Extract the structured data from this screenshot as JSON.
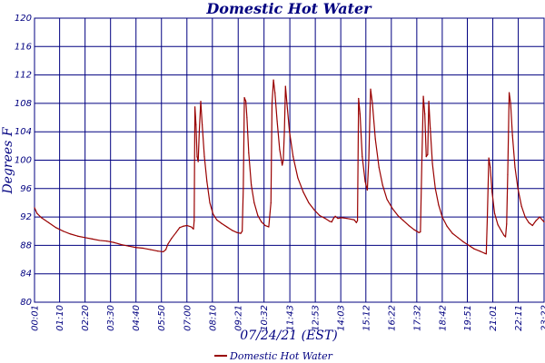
{
  "chart_data": {
    "type": "line",
    "title": "Domestic Hot Water",
    "xlabel": "07/24/21 (EST)",
    "ylabel": "Degrees F",
    "ylim": [
      80,
      120
    ],
    "yticks": [
      80,
      84,
      88,
      92,
      96,
      100,
      104,
      108,
      112,
      116,
      120
    ],
    "grid": true,
    "legend_position": "bottom-center",
    "colors": {
      "series": "#990000",
      "grid": "#000080",
      "text": "#000080",
      "background": "#ffffff"
    },
    "x_tick_labels": [
      "00:01",
      "01:10",
      "02:20",
      "03:30",
      "04:40",
      "05:50",
      "07:00",
      "08:10",
      "09:21",
      "10:32",
      "11:43",
      "12:53",
      "14:03",
      "15:12",
      "16:22",
      "17:32",
      "18:42",
      "19:51",
      "21:01",
      "22:11",
      "23:22"
    ],
    "x_tick_minutes": [
      1,
      70,
      140,
      210,
      280,
      350,
      420,
      490,
      561,
      632,
      703,
      773,
      843,
      912,
      982,
      1052,
      1122,
      1191,
      1261,
      1331,
      1402
    ],
    "xlim_minutes": [
      1,
      1402
    ],
    "series": [
      {
        "name": "Domestic Hot Water",
        "points": [
          [
            1,
            93.3
          ],
          [
            8,
            92.5
          ],
          [
            20,
            91.9
          ],
          [
            40,
            91.2
          ],
          [
            60,
            90.5
          ],
          [
            80,
            90.0
          ],
          [
            100,
            89.6
          ],
          [
            120,
            89.3
          ],
          [
            140,
            89.1
          ],
          [
            160,
            88.9
          ],
          [
            180,
            88.7
          ],
          [
            200,
            88.6
          ],
          [
            220,
            88.4
          ],
          [
            240,
            88.1
          ],
          [
            260,
            87.9
          ],
          [
            280,
            87.7
          ],
          [
            300,
            87.6
          ],
          [
            320,
            87.4
          ],
          [
            340,
            87.2
          ],
          [
            355,
            87.1
          ],
          [
            362,
            87.4
          ],
          [
            368,
            88.2
          ],
          [
            378,
            89.0
          ],
          [
            390,
            89.8
          ],
          [
            400,
            90.5
          ],
          [
            410,
            90.7
          ],
          [
            420,
            90.8
          ],
          [
            432,
            90.6
          ],
          [
            438,
            90.3
          ],
          [
            440,
            91.5
          ],
          [
            442,
            107.5
          ],
          [
            445,
            105.0
          ],
          [
            448,
            100.5
          ],
          [
            451,
            99.8
          ],
          [
            454,
            104.0
          ],
          [
            458,
            108.3
          ],
          [
            462,
            105.0
          ],
          [
            468,
            100.5
          ],
          [
            475,
            97.0
          ],
          [
            483,
            94.0
          ],
          [
            492,
            92.4
          ],
          [
            502,
            91.6
          ],
          [
            515,
            91.1
          ],
          [
            530,
            90.6
          ],
          [
            545,
            90.1
          ],
          [
            558,
            89.8
          ],
          [
            568,
            89.7
          ],
          [
            572,
            90.0
          ],
          [
            575,
            96.0
          ],
          [
            578,
            108.8
          ],
          [
            582,
            108.3
          ],
          [
            585,
            106.0
          ],
          [
            590,
            101.0
          ],
          [
            597,
            96.5
          ],
          [
            605,
            94.0
          ],
          [
            615,
            92.2
          ],
          [
            625,
            91.3
          ],
          [
            635,
            90.8
          ],
          [
            645,
            90.6
          ],
          [
            651,
            94.0
          ],
          [
            654,
            108.0
          ],
          [
            658,
            111.3
          ],
          [
            662,
            109.5
          ],
          [
            668,
            105.5
          ],
          [
            675,
            101.5
          ],
          [
            682,
            99.3
          ],
          [
            685,
            100.0
          ],
          [
            688,
            104.0
          ],
          [
            691,
            110.4
          ],
          [
            695,
            108.0
          ],
          [
            702,
            104.0
          ],
          [
            712,
            100.5
          ],
          [
            725,
            97.5
          ],
          [
            740,
            95.5
          ],
          [
            755,
            94.0
          ],
          [
            770,
            93.0
          ],
          [
            785,
            92.2
          ],
          [
            800,
            91.8
          ],
          [
            812,
            91.4
          ],
          [
            818,
            91.3
          ],
          [
            823,
            91.8
          ],
          [
            828,
            92.1
          ],
          [
            835,
            91.8
          ],
          [
            845,
            91.9
          ],
          [
            860,
            91.8
          ],
          [
            870,
            91.7
          ],
          [
            880,
            91.6
          ],
          [
            886,
            91.2
          ],
          [
            889,
            91.5
          ],
          [
            892,
            108.7
          ],
          [
            896,
            106.5
          ],
          [
            902,
            100.5
          ],
          [
            910,
            97.0
          ],
          [
            916,
            95.8
          ],
          [
            920,
            100.0
          ],
          [
            925,
            110.0
          ],
          [
            930,
            108.0
          ],
          [
            938,
            103.0
          ],
          [
            948,
            99.0
          ],
          [
            958,
            96.5
          ],
          [
            970,
            94.5
          ],
          [
            985,
            93.2
          ],
          [
            1000,
            92.2
          ],
          [
            1015,
            91.5
          ],
          [
            1030,
            90.8
          ],
          [
            1045,
            90.2
          ],
          [
            1058,
            89.8
          ],
          [
            1062,
            89.9
          ],
          [
            1066,
            100.0
          ],
          [
            1070,
            109.0
          ],
          [
            1074,
            106.5
          ],
          [
            1078,
            100.5
          ],
          [
            1082,
            100.8
          ],
          [
            1085,
            108.3
          ],
          [
            1089,
            104.5
          ],
          [
            1095,
            99.5
          ],
          [
            1103,
            96.0
          ],
          [
            1112,
            93.7
          ],
          [
            1122,
            92.0
          ],
          [
            1135,
            90.7
          ],
          [
            1150,
            89.7
          ],
          [
            1165,
            89.1
          ],
          [
            1180,
            88.5
          ],
          [
            1195,
            88.0
          ],
          [
            1210,
            87.5
          ],
          [
            1225,
            87.2
          ],
          [
            1238,
            86.9
          ],
          [
            1243,
            86.8
          ],
          [
            1246,
            92.0
          ],
          [
            1250,
            100.3
          ],
          [
            1254,
            99.0
          ],
          [
            1259,
            95.5
          ],
          [
            1266,
            92.5
          ],
          [
            1275,
            90.9
          ],
          [
            1285,
            90.0
          ],
          [
            1292,
            89.4
          ],
          [
            1296,
            89.2
          ],
          [
            1299,
            91.0
          ],
          [
            1302,
            98.0
          ],
          [
            1306,
            109.5
          ],
          [
            1310,
            108.0
          ],
          [
            1315,
            103.5
          ],
          [
            1322,
            99.0
          ],
          [
            1330,
            96.0
          ],
          [
            1340,
            93.5
          ],
          [
            1350,
            92.0
          ],
          [
            1360,
            91.2
          ],
          [
            1370,
            90.8
          ],
          [
            1380,
            91.5
          ],
          [
            1390,
            92.0
          ],
          [
            1402,
            91.3
          ]
        ]
      }
    ]
  }
}
